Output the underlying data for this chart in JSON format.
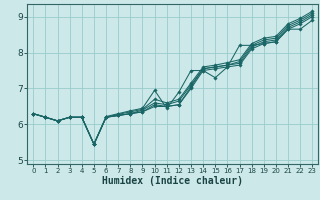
{
  "xlabel": "Humidex (Indice chaleur)",
  "ylabel": "",
  "bg_color": "#cce8e8",
  "grid_color": "#99cccc",
  "line_color": "#1a6666",
  "xlim": [
    -0.5,
    23.5
  ],
  "ylim": [
    4.9,
    9.35
  ],
  "xticks": [
    0,
    1,
    2,
    3,
    4,
    5,
    6,
    7,
    8,
    9,
    10,
    11,
    12,
    13,
    14,
    15,
    16,
    17,
    18,
    19,
    20,
    21,
    22,
    23
  ],
  "yticks": [
    5,
    6,
    7,
    8,
    9
  ],
  "lines": [
    [
      6.3,
      6.2,
      6.1,
      6.2,
      6.2,
      5.45,
      6.2,
      6.25,
      6.3,
      6.35,
      6.5,
      6.5,
      6.55,
      7.0,
      7.5,
      7.55,
      7.6,
      7.65,
      8.1,
      8.25,
      8.3,
      8.65,
      8.8,
      9.0
    ],
    [
      6.3,
      6.2,
      6.1,
      6.2,
      6.2,
      5.45,
      6.2,
      6.25,
      6.3,
      6.35,
      6.55,
      6.5,
      6.55,
      7.05,
      7.55,
      7.6,
      7.65,
      7.7,
      8.15,
      8.3,
      8.35,
      8.7,
      8.85,
      9.05
    ],
    [
      6.3,
      6.2,
      6.1,
      6.2,
      6.2,
      5.45,
      6.2,
      6.25,
      6.3,
      6.4,
      6.6,
      6.55,
      6.65,
      7.1,
      7.55,
      7.6,
      7.65,
      7.75,
      8.2,
      8.35,
      8.4,
      8.75,
      8.9,
      9.1
    ],
    [
      6.3,
      6.2,
      6.1,
      6.2,
      6.2,
      5.45,
      6.2,
      6.28,
      6.35,
      6.42,
      6.7,
      6.6,
      6.7,
      7.15,
      7.6,
      7.65,
      7.72,
      7.8,
      8.25,
      8.4,
      8.45,
      8.8,
      8.95,
      9.15
    ],
    [
      6.3,
      6.2,
      6.1,
      6.2,
      6.2,
      5.45,
      6.22,
      6.3,
      6.38,
      6.45,
      6.95,
      6.45,
      6.9,
      7.5,
      7.5,
      7.3,
      7.6,
      8.2,
      8.2,
      8.25,
      8.3,
      8.65,
      8.65,
      8.9
    ]
  ]
}
